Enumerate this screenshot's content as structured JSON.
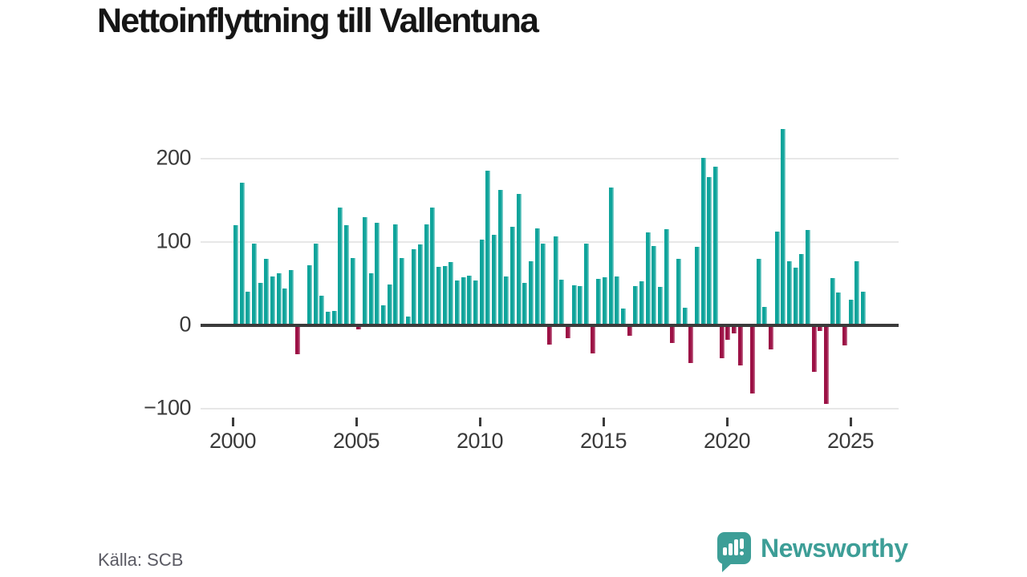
{
  "title": "Nettoinflyttning till Vallentuna",
  "source": "Källa: SCB",
  "branding": {
    "name": "Newsworthy"
  },
  "colors": {
    "positive_bar": "#0fa49b",
    "negative_bar": "#9c1145",
    "axis": "#3b3b3b",
    "gridline": "#e7e7e7",
    "title_text": "#161616",
    "tick_label": "#3a3a3a",
    "source_text": "#5a5a63",
    "brand_teal": "#3d9e97"
  },
  "chart_data": {
    "type": "bar",
    "title": "Nettoinflyttning till Vallentuna",
    "x_unit": "quarter",
    "x_start": "2000Q1",
    "x_end": "2025Q3",
    "grid": "horizontal",
    "ylim": [
      -110,
      250
    ],
    "y_ticks": [
      {
        "value": 200,
        "label": "200"
      },
      {
        "value": 100,
        "label": "100"
      },
      {
        "value": 0,
        "label": "0"
      },
      {
        "value": -100,
        "label": "−100"
      }
    ],
    "x_ticks": [
      {
        "value": 2000,
        "label": "2000"
      },
      {
        "value": 2005,
        "label": "2005"
      },
      {
        "value": 2010,
        "label": "2010"
      },
      {
        "value": 2015,
        "label": "2015"
      },
      {
        "value": 2020,
        "label": "2020"
      },
      {
        "value": 2025,
        "label": "2025"
      }
    ],
    "series": [
      {
        "name": "Nettoinflyttning",
        "values": [
          120,
          171,
          40,
          98,
          51,
          80,
          59,
          63,
          44,
          66,
          -35,
          0,
          72,
          98,
          36,
          16,
          17,
          141,
          120,
          81,
          -5,
          130,
          63,
          123,
          24,
          49,
          121,
          81,
          11,
          91,
          97,
          121,
          141,
          70,
          71,
          76,
          54,
          58,
          60,
          54,
          103,
          186,
          109,
          163,
          59,
          118,
          158,
          51,
          77,
          116,
          98,
          -23,
          107,
          55,
          -15,
          48,
          47,
          98,
          -34,
          56,
          58,
          165,
          59,
          20,
          -12,
          47,
          53,
          112,
          95,
          46,
          115,
          -21,
          80,
          21,
          -45,
          94,
          201,
          178,
          190,
          -39,
          -17,
          -10,
          -48,
          0,
          -82,
          80,
          22,
          -29,
          113,
          236,
          77,
          69,
          86,
          114,
          -56,
          -7,
          -94,
          57,
          39,
          -24,
          31,
          77,
          40
        ]
      }
    ]
  }
}
